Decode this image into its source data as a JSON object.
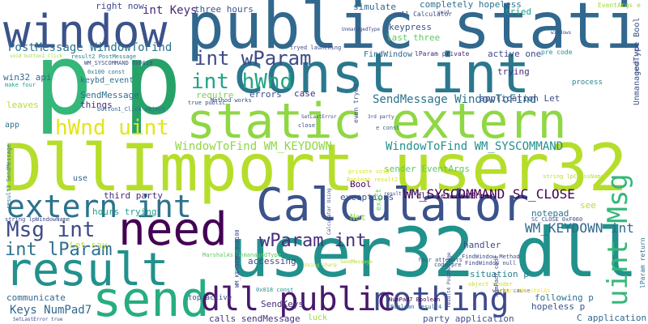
{
  "palette": [
    "#440154",
    "#482878",
    "#3e4989",
    "#31688e",
    "#26828e",
    "#1f9e89",
    "#35b779",
    "#6ece58",
    "#b5de2b",
    "#fde725"
  ],
  "words": [
    {
      "text": "DllImport user32",
      "color": "#b5de2b"
    },
    {
      "text": "public static",
      "color": "#31688e"
    },
    {
      "text": "const int",
      "color": "#2a788e"
    },
    {
      "text": "static extern",
      "color": "#8fd744"
    },
    {
      "text": "window",
      "color": "#3b528b"
    },
    {
      "text": "p",
      "color": "#35b779"
    },
    {
      "text": "p",
      "color": "#26a269"
    },
    {
      "text": "user32 dll",
      "color": "#21918c"
    },
    {
      "text": "Calculator",
      "color": "#3b528b"
    },
    {
      "text": "need",
      "color": "#440154"
    },
    {
      "text": "result",
      "color": "#21918c"
    },
    {
      "text": "send",
      "color": "#26ad81"
    },
    {
      "text": "extern int",
      "color": "#2c728e"
    },
    {
      "text": "nothing",
      "color": "#3e4a89"
    },
    {
      "text": "dll public",
      "color": "#48186a"
    },
    {
      "text": "uint Msg",
      "color": "#35b779"
    },
    {
      "text": "hWnd uint",
      "color": "#e5e419"
    },
    {
      "text": "int hWnd",
      "color": "#20a486"
    },
    {
      "text": "int wParam",
      "color": "#3e4a89"
    },
    {
      "text": "Msg int",
      "color": "#3e4a89"
    },
    {
      "text": "wParam int",
      "color": "#472f7d"
    },
    {
      "text": "int lParam",
      "color": "#2d708e"
    },
    {
      "text": "WM_SYSCOMMAND SC_CLOSE",
      "color": "#440154"
    },
    {
      "text": "Keys NumPad7",
      "color": "#31688e"
    },
    {
      "text": "WM_KEYDOWN int",
      "color": "#31688e"
    },
    {
      "text": "SendMessage WindowToFind",
      "color": "#2c728e"
    },
    {
      "text": "WindowToFind WM_KEYDOWN",
      "color": "#8fd744"
    },
    {
      "text": "WindowToFind WM_SYSCOMMAND",
      "color": "#21918c"
    },
    {
      "text": "PostMessage WindowToFind",
      "color": "#2c728e"
    },
    {
      "text": "int Keys",
      "color": "#482878"
    },
    {
      "text": "three hours",
      "color": "#3b528b"
    },
    {
      "text": "right now",
      "color": "#3e4a89"
    },
    {
      "text": "simulate",
      "color": "#31688e"
    },
    {
      "text": "completely hopeless",
      "color": "#2c728e"
    },
    {
      "text": "keypress",
      "color": "#3b528b"
    },
    {
      "text": "FindWindow",
      "color": "#31688e"
    },
    {
      "text": "active one",
      "color": "#3e4a89"
    },
    {
      "text": "last three",
      "color": "#5ec962"
    },
    {
      "text": "application Let",
      "color": "#3e4a89"
    },
    {
      "text": "trying",
      "color": "#472f7d"
    },
    {
      "text": "tried",
      "color": "#1f9e89"
    },
    {
      "text": "SendMessage",
      "color": "#2c728e"
    },
    {
      "text": "things",
      "color": "#472f7d"
    },
    {
      "text": "errors",
      "color": "#3e4a89"
    },
    {
      "text": "require",
      "color": "#7ad151"
    },
    {
      "text": "case",
      "color": "#472f7d"
    },
    {
      "text": "Bool",
      "color": "#440154"
    },
    {
      "text": "win32 api",
      "color": "#31688e"
    },
    {
      "text": "keybd_event",
      "color": "#2c728e"
    },
    {
      "text": "leaves",
      "color": "#b5de2b"
    },
    {
      "text": "app",
      "color": "#2c728e"
    },
    {
      "text": "hours trying",
      "color": "#20a486"
    },
    {
      "text": "third party",
      "color": "#482878"
    },
    {
      "text": "use",
      "color": "#31688e"
    },
    {
      "text": "Let say",
      "color": "#c2df23"
    },
    {
      "text": "communicate",
      "color": "#31688e"
    },
    {
      "text": "accessing",
      "color": "#3e4a89"
    },
    {
      "text": "exceptions",
      "color": "#3b528b"
    },
    {
      "text": "dll SetLastError",
      "color": "#440154"
    },
    {
      "text": "Net",
      "color": "#8fd744"
    },
    {
      "text": "notepad",
      "color": "#2c728e"
    },
    {
      "text": "see",
      "color": "#b5de2b"
    },
    {
      "text": "handler",
      "color": "#3b528b"
    },
    {
      "text": "situation p",
      "color": "#3e4a89"
    },
    {
      "text": "following p",
      "color": "#26828e"
    },
    {
      "text": "hopeless p",
      "color": "#2c728e"
    },
    {
      "text": "C application",
      "color": "#3b528b"
    },
    {
      "text": "SendKeys",
      "color": "#31688e"
    },
    {
      "text": "luck",
      "color": "#472f7d"
    },
    {
      "text": "party application",
      "color": "#a0da39"
    },
    {
      "text": "calls sendMessage",
      "color": "#3b528b"
    },
    {
      "text": "top active",
      "color": "#472f7d"
    },
    {
      "text": "sender EventArgs",
      "color": "#3e4a89"
    },
    {
      "text": "process",
      "color": "#5ec962"
    },
    {
      "text": "UnmanagedType Bool",
      "color": "#26828e"
    },
    {
      "text": "pre code",
      "color": "#3b528b"
    },
    {
      "text": "lParam private",
      "color": "#21918c"
    },
    {
      "text": "null Calculator",
      "color": "#482878"
    },
    {
      "text": "EventArgs e",
      "color": "#3e4a89"
    },
    {
      "text": "tryed launching",
      "color": "#a0da39"
    },
    {
      "text": "result2 PostMessage",
      "color": "#3e4a89"
    },
    {
      "text": "WM_SYSCOMMAND 0x0010",
      "color": "#26828e"
    },
    {
      "text": "0x100 const",
      "color": "#3e4a89"
    },
    {
      "text": "void button1_Click",
      "color": "#2c728e"
    },
    {
      "text": "make four",
      "color": "#a0da39"
    },
    {
      "text": "true public",
      "color": "#20a486"
    },
    {
      "text": "Method works",
      "color": "#3e4a89"
    },
    {
      "text": "button1_Click object",
      "color": "#3e4a89"
    },
    {
      "text": "close",
      "color": "#31688e"
    },
    {
      "text": "e const",
      "color": "#3e4a89"
    },
    {
      "text": "Boolean result2",
      "color": "#31688e"
    },
    {
      "text": "private void",
      "color": "#d8e219"
    },
    {
      "text": "even tryed",
      "color": "#d8e219"
    },
    {
      "text": "exact",
      "color": "#3b528b"
    },
    {
      "text": "string lpClassName",
      "color": "#5ec962"
    },
    {
      "text": "SC_CLOSE 0xF060",
      "color": "#b5de2b"
    },
    {
      "text": "string lpWindowName",
      "color": "#3e4a89"
    },
    {
      "text": "result3 SendMessage",
      "color": "#3e4a89"
    },
    {
      "text": "MarshalAs UnmanagedType",
      "color": "#2c728e"
    },
    {
      "text": "0x018 const",
      "color": "#5ec962"
    },
    {
      "text": "FindWindow Method",
      "color": "#21918c"
    },
    {
      "text": "FindWindow null",
      "color": "#3e4a89"
    },
    {
      "text": "four attempts",
      "color": "#3e4a89"
    },
    {
      "text": "code pre",
      "color": "#3b528b"
    },
    {
      "text": "object sender",
      "color": "#3e4a89"
    },
    {
      "text": "works cause",
      "color": "#c2df23"
    },
    {
      "text": "NumPad7 Boolean",
      "color": "#3e4a89"
    },
    {
      "text": "Boolean result4",
      "color": "#440154"
    },
    {
      "text": "return MarshalAs",
      "color": "#31688e"
    },
    {
      "text": "SetLastError true",
      "color": "#fde725"
    },
    {
      "text": "Calculator Using",
      "color": "#3e4a89"
    },
    {
      "text": "result4 PostMessage",
      "color": "#3e4a89"
    },
    {
      "text": "NumPad7 code",
      "color": "#3e4a89"
    },
    {
      "text": "lParam return",
      "color": "#3e4a89"
    },
    {
      "text": "WM_KEYDOWN 0x0100",
      "color": "#2c728e"
    },
    {
      "text": "SendMessage",
      "color": "#3e4a89"
    },
    {
      "text": "Using sharp",
      "color": "#b5de2b"
    },
    {
      "text": "3rd party",
      "color": "#b5de2b"
    },
    {
      "text": "result public",
      "color": "#3e4a89"
    },
    {
      "text": "SetLastError",
      "color": "#3e4a89"
    },
    {
      "text": "const int",
      "color": "#3e4a89"
    },
    {
      "text": "UnmanagedType",
      "color": "#3e4a89"
    },
    {
      "text": "void",
      "color": "#3e4a89"
    },
    {
      "text": "e",
      "color": "#3e4a89"
    },
    {
      "text": "windows",
      "color": "#3e4a89"
    },
    {
      "text": "Method",
      "color": "#3e4a89"
    }
  ]
}
